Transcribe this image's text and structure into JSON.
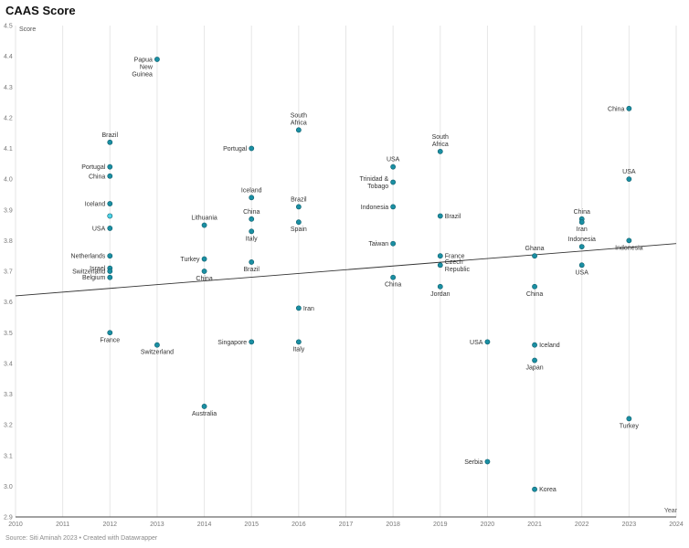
{
  "title": "CAAS Score",
  "footer": "Source: Siti Aminah 2023 • Created with Datawrapper",
  "chart_data": {
    "type": "scatter",
    "title": "CAAS Score",
    "ylabel": "Score",
    "xlabel": "Year",
    "xlim": [
      2010,
      2024
    ],
    "ylim": [
      2.9,
      4.5
    ],
    "x_ticks": [
      "2010",
      "2011",
      "2012",
      "2013",
      "2014",
      "2015",
      "2016",
      "2017",
      "2018",
      "2019",
      "2020",
      "2021",
      "2022",
      "2023",
      "2024"
    ],
    "y_ticks": [
      "2.9",
      "3.0",
      "3.1",
      "3.2",
      "3.3",
      "3.4",
      "3.5",
      "3.6",
      "3.7",
      "3.8",
      "3.9",
      "4.0",
      "4.1",
      "4.2",
      "4.3",
      "4.4",
      "4.5"
    ],
    "grid": "vertical",
    "point_color": "#1a8fa3",
    "highlight_color": "#4dd4e8",
    "trendline": {
      "x": [
        2010,
        2024
      ],
      "y": [
        3.62,
        3.79
      ],
      "color": "#333333"
    },
    "points": [
      {
        "label": "Papua New Guinea",
        "x": 2013,
        "y": 4.39
      },
      {
        "label": "Brazil",
        "x": 2012,
        "y": 4.12
      },
      {
        "label": "Portugal",
        "x": 2012,
        "y": 4.04
      },
      {
        "label": "China",
        "x": 2012,
        "y": 4.01
      },
      {
        "label": "Iceland",
        "x": 2012,
        "y": 3.92
      },
      {
        "label": "",
        "x": 2012,
        "y": 3.88,
        "highlight": true
      },
      {
        "label": "USA",
        "x": 2012,
        "y": 3.84
      },
      {
        "label": "Netherlands",
        "x": 2012,
        "y": 3.75
      },
      {
        "label": "Israel",
        "x": 2012,
        "y": 3.71
      },
      {
        "label": "Switzerland",
        "x": 2012,
        "y": 3.7
      },
      {
        "label": "Belgium",
        "x": 2012,
        "y": 3.68
      },
      {
        "label": "France",
        "x": 2012,
        "y": 3.5
      },
      {
        "label": "Switzerland",
        "x": 2013,
        "y": 3.46
      },
      {
        "label": "Lithuania",
        "x": 2014,
        "y": 3.85
      },
      {
        "label": "Turkey",
        "x": 2014,
        "y": 3.74
      },
      {
        "label": "China",
        "x": 2014,
        "y": 3.7
      },
      {
        "label": "Australia",
        "x": 2014,
        "y": 3.26
      },
      {
        "label": "Portugal",
        "x": 2015,
        "y": 4.1
      },
      {
        "label": "Iceland",
        "x": 2015,
        "y": 3.94
      },
      {
        "label": "China",
        "x": 2015,
        "y": 3.87
      },
      {
        "label": "Italy",
        "x": 2015,
        "y": 3.83
      },
      {
        "label": "Brazil",
        "x": 2015,
        "y": 3.73
      },
      {
        "label": "Singapore",
        "x": 2015,
        "y": 3.47
      },
      {
        "label": "South Africa",
        "x": 2016,
        "y": 4.16
      },
      {
        "label": "Brazil",
        "x": 2016,
        "y": 3.91
      },
      {
        "label": "Spain",
        "x": 2016,
        "y": 3.86
      },
      {
        "label": "Iran",
        "x": 2016,
        "y": 3.58
      },
      {
        "label": "Italy",
        "x": 2016,
        "y": 3.47
      },
      {
        "label": "USA",
        "x": 2018,
        "y": 4.04
      },
      {
        "label": "Trinidad & Tobago",
        "x": 2018,
        "y": 3.99
      },
      {
        "label": "Indonesia",
        "x": 2018,
        "y": 3.91
      },
      {
        "label": "Taiwan",
        "x": 2018,
        "y": 3.79
      },
      {
        "label": "China",
        "x": 2018,
        "y": 3.68
      },
      {
        "label": "South Africa",
        "x": 2019,
        "y": 4.09
      },
      {
        "label": "Brazil",
        "x": 2019,
        "y": 3.88
      },
      {
        "label": "France",
        "x": 2019,
        "y": 3.75
      },
      {
        "label": "Czech Republic",
        "x": 2019,
        "y": 3.72
      },
      {
        "label": "Jordan",
        "x": 2019,
        "y": 3.65
      },
      {
        "label": "USA",
        "x": 2020,
        "y": 3.47
      },
      {
        "label": "Serbia",
        "x": 2020,
        "y": 3.08
      },
      {
        "label": "Ghana",
        "x": 2021,
        "y": 3.75
      },
      {
        "label": "China",
        "x": 2021,
        "y": 3.65
      },
      {
        "label": "Iceland",
        "x": 2021,
        "y": 3.46
      },
      {
        "label": "Japan",
        "x": 2021,
        "y": 3.41
      },
      {
        "label": "Korea",
        "x": 2021,
        "y": 2.99
      },
      {
        "label": "China",
        "x": 2022,
        "y": 3.87
      },
      {
        "label": "Iran",
        "x": 2022,
        "y": 3.86
      },
      {
        "label": "Indonesia",
        "x": 2022,
        "y": 3.78
      },
      {
        "label": "USA",
        "x": 2022,
        "y": 3.72
      },
      {
        "label": "China",
        "x": 2023,
        "y": 4.23
      },
      {
        "label": "USA",
        "x": 2023,
        "y": 4.0
      },
      {
        "label": "Indonesia",
        "x": 2023,
        "y": 3.8
      },
      {
        "label": "Turkey",
        "x": 2023,
        "y": 3.22
      }
    ]
  }
}
